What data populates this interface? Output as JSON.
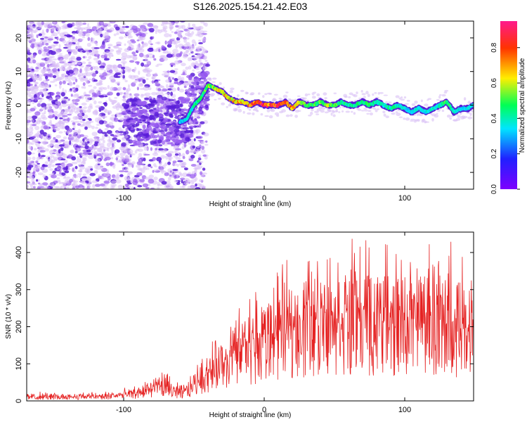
{
  "title": "S126.2025.154.21.42.E03",
  "colors": {
    "snr_line": "#e52222",
    "scatter_faint": "#d9bff5",
    "scatter_mid": "#9a5ef0",
    "scatter_dark": "#5a1ed8",
    "colorbar": [
      "#7d00ff",
      "#2020ff",
      "#00e5ff",
      "#00ff55",
      "#ffee00",
      "#ff3300",
      "#ff1a8c"
    ]
  },
  "chart_data": [
    {
      "type": "heatmap",
      "title": "",
      "xlabel": "Height of straight line (km)",
      "ylabel": "Frequency (Hz)",
      "xlim": [
        -169,
        149
      ],
      "ylim": [
        -25,
        25
      ],
      "xticks": [
        -100,
        0,
        100
      ],
      "yticks": [
        -20,
        -10,
        0,
        10,
        20
      ],
      "grid": false,
      "colorbar": {
        "label": "Normalized spectral amplitude",
        "range": [
          0.0,
          0.95
        ],
        "ticks": [
          "0.0",
          "0.2",
          "0.4",
          "0.6",
          "0.8"
        ]
      },
      "ridge": {
        "x": [
          -60,
          -55,
          -50,
          -45,
          -40,
          -35,
          -30,
          -25,
          -20,
          -15,
          -10,
          -5,
          0,
          5,
          10,
          15,
          20,
          25,
          30,
          35,
          40,
          45,
          50,
          55,
          60,
          65,
          70,
          75,
          80,
          85,
          90,
          95,
          100,
          105,
          110,
          115,
          120,
          125,
          130,
          135,
          140,
          145,
          149
        ],
        "y": [
          -5,
          -4,
          0,
          2,
          6,
          5,
          4,
          2,
          1,
          1,
          0,
          1,
          0,
          0,
          0,
          1,
          -1,
          1,
          0,
          0,
          1,
          0,
          0,
          1,
          0,
          0,
          1,
          0,
          1,
          0,
          -1,
          0,
          -1,
          -2,
          -1,
          -2,
          -1,
          0,
          1,
          -2,
          -1,
          -1,
          0
        ],
        "amplitude": [
          0.3,
          0.35,
          0.4,
          0.5,
          0.55,
          0.6,
          0.65,
          0.7,
          0.7,
          0.75,
          0.8,
          0.85,
          0.9,
          0.85,
          0.85,
          0.8,
          0.75,
          0.6,
          0.55,
          0.5,
          0.55,
          0.6,
          0.55,
          0.5,
          0.45,
          0.45,
          0.5,
          0.5,
          0.45,
          0.4,
          0.45,
          0.4,
          0.35,
          0.35,
          0.4,
          0.35,
          0.4,
          0.4,
          0.55,
          0.4,
          0.35,
          0.35,
          0.35
        ]
      }
    },
    {
      "type": "line",
      "title": "",
      "xlabel": "Height of straight line (km)",
      "ylabel": "SNR (10 * v/v)",
      "xlim": [
        -169,
        149
      ],
      "ylim": [
        0,
        455
      ],
      "xticks": [
        -100,
        0,
        100
      ],
      "yticks": [
        0,
        100,
        200,
        300,
        400
      ],
      "grid": false,
      "series": [
        {
          "envelope_x": [
            -169,
            -150,
            -130,
            -110,
            -100,
            -90,
            -80,
            -75,
            -70,
            -65,
            -60,
            -55,
            -50,
            -45,
            -40,
            -35,
            -30,
            -25,
            -20,
            -15,
            -10,
            -5,
            0,
            5,
            10,
            15,
            20,
            25,
            30,
            40,
            50,
            60,
            70,
            80,
            90,
            100,
            110,
            120,
            130,
            140,
            149
          ],
          "envelope_mean": [
            10,
            10,
            10,
            12,
            14,
            18,
            30,
            40,
            35,
            25,
            18,
            25,
            40,
            60,
            75,
            85,
            90,
            110,
            120,
            130,
            140,
            150,
            155,
            165,
            175,
            190,
            200,
            205,
            210,
            220,
            215,
            220,
            225,
            215,
            210,
            215,
            205,
            210,
            200,
            195,
            185
          ],
          "envelope_max": [
            25,
            25,
            25,
            28,
            35,
            45,
            70,
            90,
            80,
            60,
            45,
            60,
            90,
            130,
            150,
            170,
            200,
            230,
            260,
            270,
            300,
            320,
            325,
            340,
            360,
            380,
            380,
            400,
            410,
            420,
            430,
            440,
            450,
            430,
            420,
            420,
            420,
            450,
            440,
            430,
            440
          ]
        }
      ]
    }
  ]
}
